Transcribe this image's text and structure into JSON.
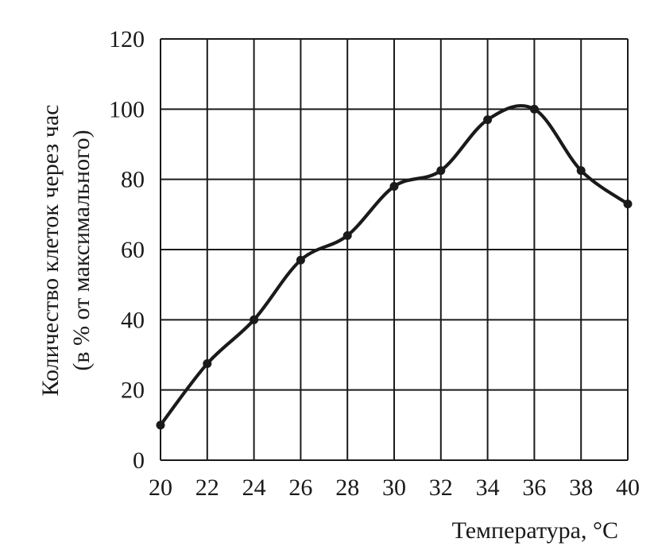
{
  "chart_data": {
    "type": "line",
    "xlabel": "Температура, °C",
    "ylabel_lines": [
      "Количество клеток через час",
      "(в % от максимального)"
    ],
    "xlim": [
      20,
      40
    ],
    "ylim": [
      0,
      120
    ],
    "x_ticks": [
      20,
      22,
      24,
      26,
      28,
      30,
      32,
      34,
      36,
      38,
      40
    ],
    "y_ticks": [
      0,
      20,
      40,
      60,
      80,
      100,
      120
    ],
    "grid": true,
    "smooth": true,
    "series": [
      {
        "x": [
          20,
          22,
          24,
          26,
          28,
          30,
          32,
          34,
          36,
          38,
          40
        ],
        "y": [
          10,
          27.5,
          40,
          57,
          64,
          78,
          82.5,
          97,
          100,
          82.5,
          73
        ]
      }
    ]
  }
}
